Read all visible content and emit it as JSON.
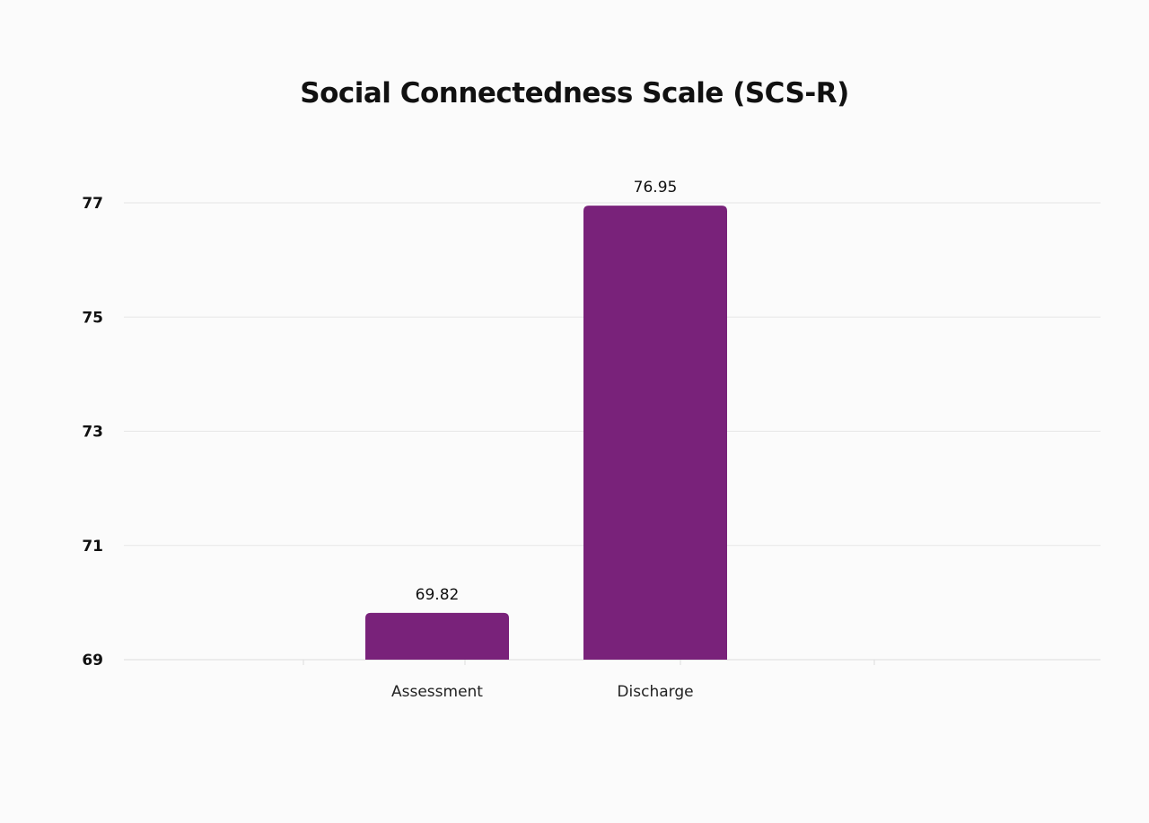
{
  "chart_data": {
    "type": "bar",
    "title": "Social Connectedness Scale (SCS-R)",
    "xlabel": "",
    "ylabel": "",
    "categories": [
      "Assessment",
      "Discharge"
    ],
    "values": [
      69.82,
      76.95
    ],
    "data_labels": [
      "69.82",
      "76.95"
    ],
    "y_ticks": [
      69,
      71,
      73,
      75,
      77
    ],
    "ylim": [
      69,
      77
    ],
    "grid": true,
    "legend": "none",
    "bar_color": "#79227a"
  }
}
